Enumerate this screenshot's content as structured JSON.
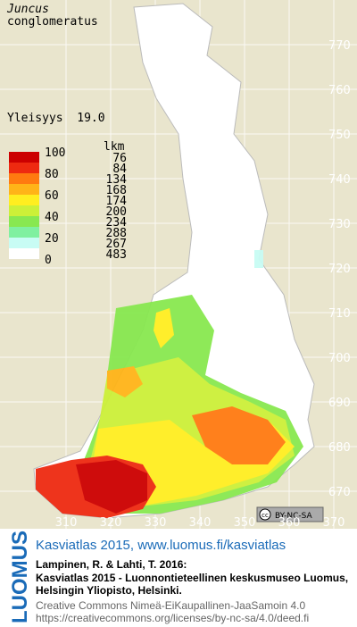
{
  "header": {
    "species_line1": "Juncus",
    "species_line2": "conglomeratus",
    "frequency": "Yleisyys  19.0"
  },
  "legend": {
    "count_title": "lkm",
    "percent_labels": [
      100,
      80,
      60,
      40,
      20,
      0
    ],
    "counts": [
      76,
      84,
      134,
      168,
      174,
      200,
      234,
      288,
      267,
      483
    ],
    "colors": [
      "#cc0000",
      "#ee2a10",
      "#ff7a10",
      "#ffb418",
      "#ffee20",
      "#ccf038",
      "#88e850",
      "#80f0a0",
      "#c8fcf4",
      "#ffffff"
    ]
  },
  "grid": {
    "y_labels": [
      770,
      760,
      750,
      740,
      730,
      720,
      710,
      700,
      690,
      680,
      670
    ],
    "x_labels": [
      310,
      320,
      330,
      340,
      350,
      360,
      370
    ]
  },
  "license_badge": "BY-NC-SA",
  "footer": {
    "logo": "LUOMUS",
    "link": "Kasviatlas 2015, www.luomus.fi/kasviatlas",
    "citation1": "Lampinen, R. & Lahti, T. 2016:",
    "citation2": "Kasviatlas 2015 - Luonnontieteellinen keskusmuseo Luomus,",
    "citation3": "Helsingin Yliopisto, Helsinki.",
    "license1": "Creative Commons Nimeä-EiKaupallinen-JaaSamoin 4.0",
    "license2": "https://creativecommons.org/licenses/by-nc-sa/4.0/deed.fi"
  }
}
